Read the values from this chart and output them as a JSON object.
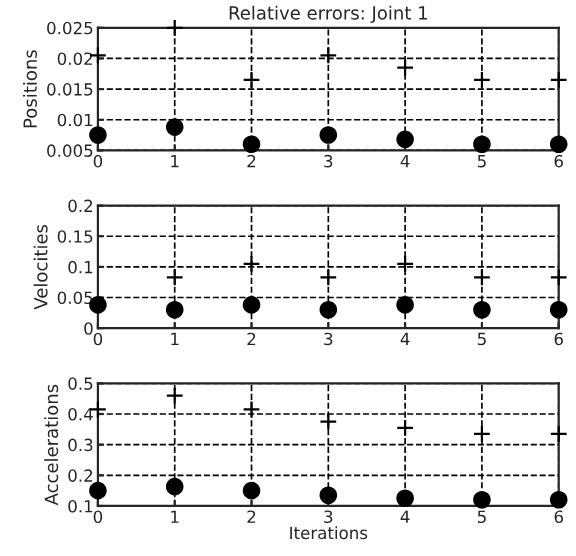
{
  "chart_data": [
    {
      "type": "scatter",
      "title": "Relative errors: Joint 1",
      "ylabel": "Positions",
      "x": [
        0,
        1,
        2,
        3,
        4,
        5,
        6
      ],
      "series": [
        {
          "color": "#000000",
          "marker": "circle",
          "values": [
            0.0075,
            0.0088,
            0.006,
            0.0075,
            0.0068,
            0.006,
            0.006
          ]
        },
        {
          "color": "#000000",
          "marker": "cross",
          "values": [
            0.0205,
            0.025,
            0.0165,
            0.0205,
            0.0185,
            0.0165,
            0.0165
          ]
        }
      ],
      "xlim": [
        0,
        6
      ],
      "xticks": [
        0,
        1,
        2,
        3,
        4,
        5,
        6
      ],
      "ylim": [
        0.005,
        0.025
      ],
      "yticks": [
        0.005,
        0.01,
        0.015,
        0.02,
        0.025
      ],
      "grid": true,
      "line_style": "dashed"
    },
    {
      "type": "scatter",
      "ylabel": "Velocities",
      "x": [
        0,
        1,
        2,
        3,
        4,
        5,
        6
      ],
      "series": [
        {
          "color": "#000000",
          "marker": "circle",
          "values": [
            0.038,
            0.03,
            0.038,
            0.03,
            0.038,
            0.03,
            0.03
          ]
        },
        {
          "color": "#000000",
          "marker": "cross",
          "values": [
            null,
            0.083,
            0.105,
            0.083,
            0.105,
            0.083,
            0.083
          ]
        }
      ],
      "xlim": [
        0,
        6
      ],
      "xticks": [
        0,
        1,
        2,
        3,
        4,
        5,
        6
      ],
      "ylim": [
        0,
        0.2
      ],
      "yticks": [
        0,
        0.05,
        0.1,
        0.15,
        0.2
      ],
      "grid": true,
      "line_style": "dashed"
    },
    {
      "type": "scatter",
      "ylabel": "Accelerations",
      "xlabel": "Iterations",
      "x": [
        0,
        1,
        2,
        3,
        4,
        5,
        6
      ],
      "series": [
        {
          "color": "#000000",
          "marker": "circle",
          "values": [
            0.15,
            0.163,
            0.15,
            0.135,
            0.125,
            0.12,
            0.12
          ]
        },
        {
          "color": "#000000",
          "marker": "cross",
          "values": [
            0.415,
            0.46,
            0.415,
            0.375,
            0.355,
            0.335,
            0.335
          ]
        }
      ],
      "xlim": [
        0,
        6
      ],
      "xticks": [
        0,
        1,
        2,
        3,
        4,
        5,
        6
      ],
      "ylim": [
        0.1,
        0.5
      ],
      "yticks": [
        0.1,
        0.2,
        0.3,
        0.4,
        0.5
      ],
      "grid": true,
      "line_style": "dashed"
    }
  ]
}
